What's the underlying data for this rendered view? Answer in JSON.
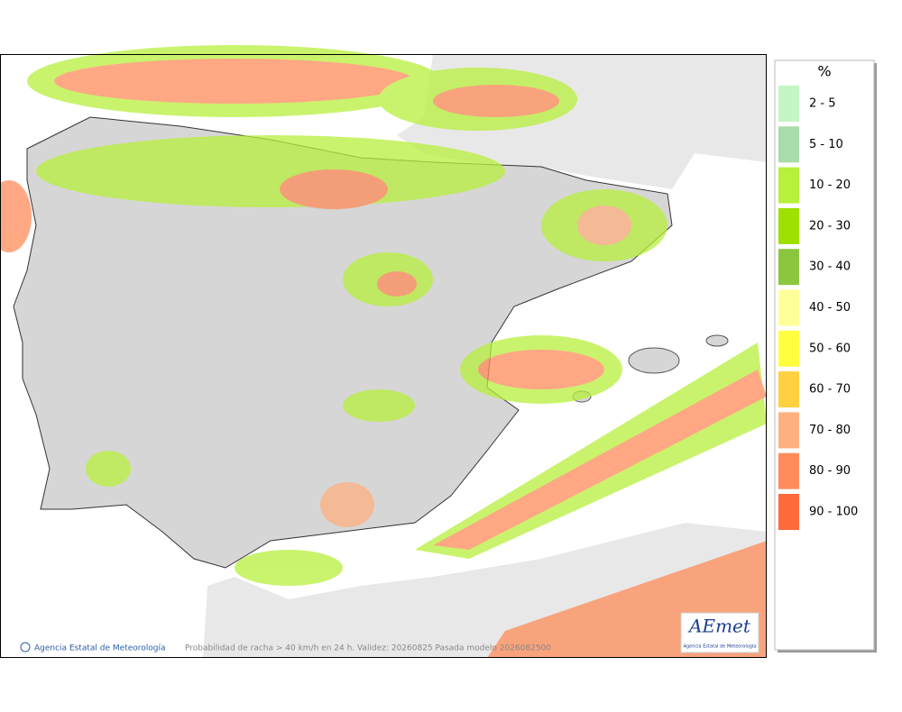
{
  "legend": {
    "title": "%",
    "items": [
      {
        "label": "2 - 5",
        "color": "#c4f5c4"
      },
      {
        "label": "5 - 10",
        "color": "#a8dca8"
      },
      {
        "label": "10 - 20",
        "color": "#b8f03c"
      },
      {
        "label": "20 - 30",
        "color": "#9ee000"
      },
      {
        "label": "30 - 40",
        "color": "#8cc63f"
      },
      {
        "label": "40 - 50",
        "color": "#ffff99"
      },
      {
        "label": "50 - 60",
        "color": "#ffff40"
      },
      {
        "label": "60 - 70",
        "color": "#ffd040"
      },
      {
        "label": "70 - 80",
        "color": "#ffb080"
      },
      {
        "label": "80 - 90",
        "color": "#ff8c5a"
      },
      {
        "label": "90 - 100",
        "color": "#ff6a3a"
      }
    ]
  },
  "footer": {
    "credit": "Agencia Estatal de Meteorología",
    "caption": "Probabilidad de racha > 40 km/h en 24 h. Validez: 20260825 Pasada modelo 2026082500"
  },
  "logo": {
    "name": "AEmet",
    "subtitle": "Agencia Estatal de Meteorología"
  }
}
